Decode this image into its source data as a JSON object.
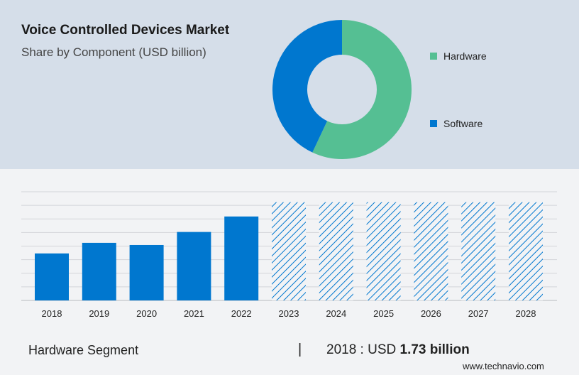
{
  "title": "Voice Controlled Devices Market",
  "subtitle": "Share by Component (USD billion)",
  "colors": {
    "hardware": "#55bf93",
    "software": "#0077cf",
    "bar": "#0077cf",
    "grid": "#d3d5d9"
  },
  "chart_data": [
    {
      "type": "pie",
      "donut": true,
      "legend_placement": "right",
      "slices": [
        {
          "name": "Hardware",
          "value": 57
        },
        {
          "name": "Software",
          "value": 43
        }
      ]
    },
    {
      "type": "bar",
      "categories": [
        "2018",
        "2019",
        "2020",
        "2021",
        "2022",
        "2023",
        "2024",
        "2025",
        "2026",
        "2027",
        "2028"
      ],
      "values": [
        1.73,
        2.12,
        2.04,
        2.52,
        3.09,
        null,
        null,
        null,
        null,
        null,
        null
      ],
      "forecast": [
        false,
        false,
        false,
        false,
        false,
        true,
        true,
        true,
        true,
        true,
        true
      ],
      "ylim": [
        0,
        4
      ],
      "grid": true,
      "y_tick_labels_shown": false
    }
  ],
  "footer": {
    "segment": "Hardware Segment",
    "separator": "|",
    "year_prefix": "2018 : USD ",
    "value": "1.73 billion",
    "site": "www.technavio.com"
  }
}
